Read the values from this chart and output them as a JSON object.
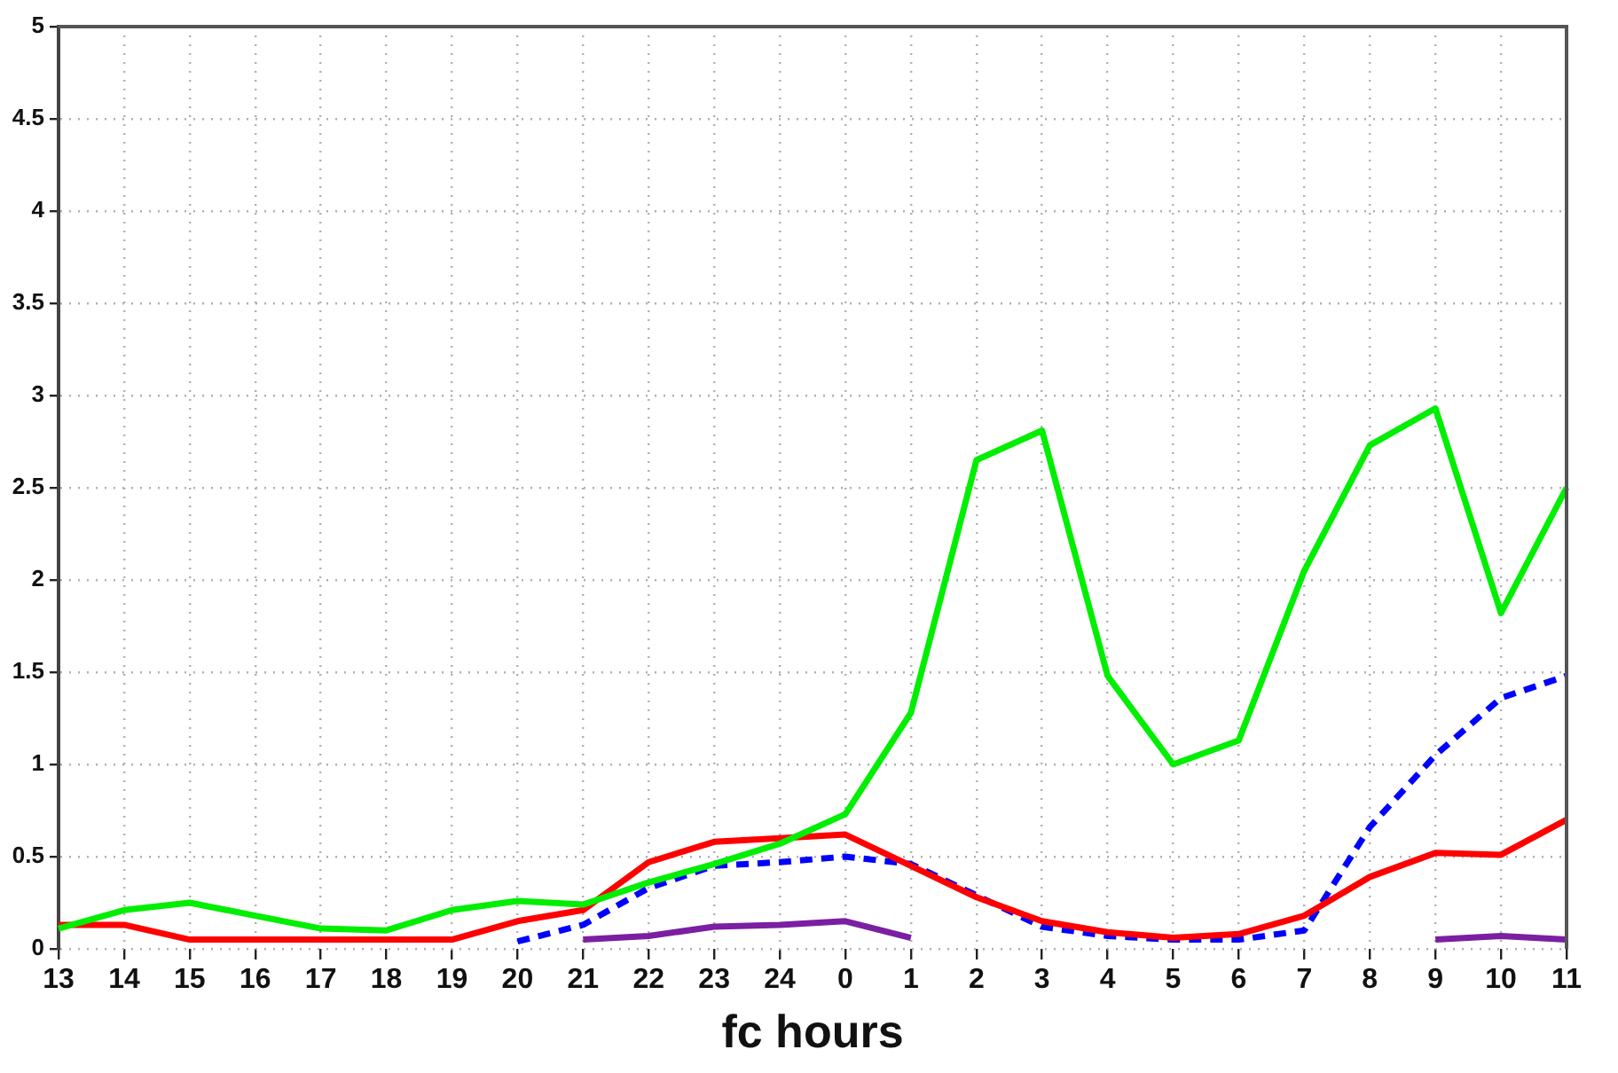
{
  "chart_data": {
    "type": "line",
    "xlabel": "fc hours",
    "categories": [
      "13",
      "14",
      "15",
      "16",
      "17",
      "18",
      "19",
      "20",
      "21",
      "22",
      "23",
      "24",
      "0",
      "1",
      "2",
      "3",
      "4",
      "5",
      "6",
      "7",
      "8",
      "9",
      "10",
      "11"
    ],
    "series": [
      {
        "color": "#00ee00",
        "values": [
          0.11,
          0.21,
          0.25,
          0.18,
          0.11,
          0.1,
          0.21,
          0.26,
          0.24,
          0.36,
          0.46,
          0.57,
          0.73,
          1.28,
          2.65,
          2.81,
          1.48,
          1.0,
          1.13,
          2.05,
          2.73,
          2.93,
          1.82,
          2.5
        ]
      },
      {
        "color": "#ff0000",
        "values": [
          0.13,
          0.13,
          0.05,
          0.05,
          0.05,
          0.05,
          0.05,
          0.15,
          0.21,
          0.47,
          0.58,
          0.6,
          0.62,
          0.45,
          0.28,
          0.15,
          0.09,
          0.06,
          0.08,
          0.18,
          0.39,
          0.52,
          0.51,
          0.7
        ]
      },
      {
        "color": "#0000ff",
        "line_style": "dashed",
        "values": [
          null,
          null,
          null,
          null,
          null,
          null,
          null,
          0.04,
          0.13,
          0.33,
          0.45,
          0.47,
          0.5,
          0.46,
          0.29,
          0.12,
          0.07,
          0.05,
          0.05,
          0.1,
          0.66,
          1.05,
          1.36,
          1.48
        ]
      },
      {
        "color": "#7b1fa2",
        "values": [
          null,
          null,
          null,
          null,
          null,
          null,
          null,
          null,
          0.05,
          0.07,
          0.12,
          0.13,
          0.15,
          0.06,
          null,
          null,
          null,
          null,
          null,
          null,
          null,
          0.05,
          0.07,
          0.05
        ]
      }
    ],
    "ylim": [
      0,
      5
    ],
    "yticks": [
      0,
      0.5,
      1,
      1.5,
      2,
      2.5,
      3,
      3.5,
      4,
      4.5,
      5
    ],
    "grid": true,
    "marker": "none",
    "line_style": "solid"
  }
}
